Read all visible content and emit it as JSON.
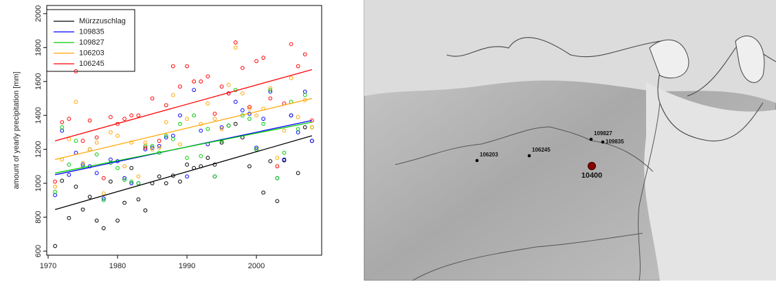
{
  "chart_data": {
    "type": "scatter",
    "y_label": "amount of yearly precipitation [mm]",
    "x": [
      1971,
      1972,
      1973,
      1974,
      1975,
      1976,
      1977,
      1978,
      1979,
      1980,
      1981,
      1982,
      1983,
      1984,
      1985,
      1986,
      1987,
      1988,
      1989,
      1990,
      1991,
      1992,
      1993,
      1994,
      1995,
      1996,
      1997,
      1998,
      1999,
      2000,
      2001,
      2002,
      2003,
      2004,
      2005,
      2006,
      2007,
      2008
    ],
    "trend_x": [
      1971,
      2008
    ],
    "xlim": [
      1969.8,
      2009.4
    ],
    "ylim": [
      576,
      2048
    ],
    "xticks": [
      1970,
      1980,
      1990,
      2000
    ],
    "yticks": [
      600,
      800,
      1000,
      1200,
      1400,
      1600,
      1800,
      2000
    ],
    "legend": "top-left",
    "series": [
      {
        "name": "Mürzzuschlag",
        "color": "#000000",
        "trend": [
          845,
          1280
        ],
        "values": [
          630,
          1015,
          795,
          980,
          845,
          920,
          780,
          735,
          1010,
          780,
          885,
          1090,
          905,
          840,
          1000,
          1040,
          1000,
          1045,
          1010,
          1110,
          1090,
          1100,
          1150,
          1110,
          1240,
          1340,
          1350,
          1270,
          1100,
          1200,
          945,
          1130,
          895,
          1135,
          1400,
          1060,
          1330,
          1250
        ]
      },
      {
        "name": "109835",
        "color": "#0000ff",
        "trend": [
          1050,
          1370
        ],
        "values": [
          930,
          1310,
          1050,
          1180,
          1110,
          1100,
          1060,
          910,
          1140,
          1130,
          1030,
          1000,
          1000,
          1200,
          1210,
          1220,
          1270,
          1280,
          1400,
          1040,
          1550,
          1310,
          1230,
          1040,
          1330,
          1530,
          1480,
          1430,
          1410,
          1210,
          1380,
          1540,
          1030,
          1140,
          1400,
          1300,
          1540,
          1250
        ]
      },
      {
        "name": "109827",
        "color": "#00cc00",
        "trend": [
          1060,
          1360
        ],
        "values": [
          950,
          1330,
          1110,
          1250,
          1100,
          1200,
          1170,
          900,
          1120,
          1090,
          1020,
          1010,
          1000,
          1220,
          1220,
          1180,
          1280,
          1260,
          1350,
          1150,
          1400,
          1160,
          1320,
          1040,
          1250,
          1340,
          1550,
          1400,
          1380,
          1200,
          1350,
          1550,
          1030,
          1180,
          1480,
          1320,
          1520,
          1330
        ]
      },
      {
        "name": "106203",
        "color": "#ffa500",
        "trend": [
          1140,
          1500
        ],
        "values": [
          980,
          1140,
          1260,
          1480,
          1120,
          1200,
          1240,
          940,
          1300,
          1280,
          1100,
          1240,
          1040,
          1240,
          1200,
          1210,
          1360,
          1520,
          1230,
          1380,
          1600,
          1350,
          1470,
          1380,
          1320,
          1580,
          1800,
          1530,
          1440,
          1400,
          1440,
          1560,
          1150,
          1310,
          1620,
          1390,
          1490,
          1330
        ]
      },
      {
        "name": "106245",
        "color": "#ff0000",
        "trend": [
          1250,
          1670
        ],
        "values": [
          1010,
          1360,
          1380,
          1660,
          1250,
          1370,
          1270,
          1030,
          1390,
          1350,
          1380,
          1400,
          1400,
          1210,
          1500,
          1250,
          1460,
          1690,
          1570,
          1690,
          1600,
          1600,
          1630,
          1410,
          1570,
          1530,
          1830,
          1680,
          1450,
          1720,
          1740,
          1500,
          1100,
          1470,
          1820,
          1690,
          1760,
          1370
        ]
      }
    ]
  },
  "map": {
    "stations": [
      "109827",
      "109835",
      "106245",
      "106203"
    ],
    "main_station": "10400"
  }
}
